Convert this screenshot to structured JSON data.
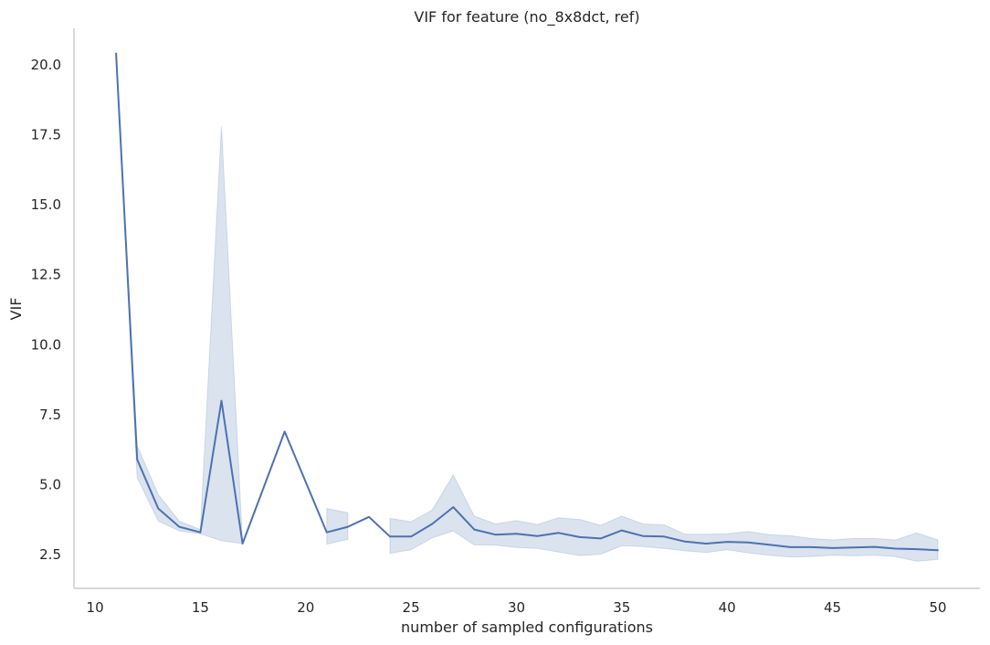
{
  "chart_data": {
    "type": "line",
    "title": "VIF for feature (no_8x8dct, ref)",
    "xlabel": "number of sampled configurations",
    "ylabel": "VIF",
    "xlim": [
      9,
      52
    ],
    "ylim": [
      1.3,
      21.3
    ],
    "xticks": [
      10,
      15,
      20,
      25,
      30,
      35,
      40,
      45,
      50
    ],
    "yticks": [
      2.5,
      5.0,
      7.5,
      10.0,
      12.5,
      15.0,
      17.5,
      20.0
    ],
    "xtick_labels": [
      "10",
      "15",
      "20",
      "25",
      "30",
      "35",
      "40",
      "45",
      "50"
    ],
    "ytick_labels": [
      "2.5",
      "5.0",
      "7.5",
      "10.0",
      "12.5",
      "15.0",
      "17.5",
      "20.0"
    ],
    "grid": false,
    "colors": {
      "line": "#4c72b0",
      "band": "#4c72b0"
    },
    "series": [
      {
        "x": [
          11,
          12,
          13,
          14,
          15,
          16,
          17,
          19,
          21,
          22,
          23,
          24,
          25,
          26,
          27,
          28,
          29,
          30,
          31,
          32,
          33,
          34,
          35,
          36,
          37,
          38,
          39,
          40,
          41,
          42,
          43,
          44,
          45,
          46,
          47,
          48,
          49,
          50
        ],
        "y": [
          20.4,
          5.9,
          4.15,
          3.5,
          3.3,
          8.0,
          2.9,
          6.9,
          3.3,
          3.5,
          3.85,
          3.15,
          3.15,
          3.6,
          4.2,
          3.4,
          3.22,
          3.25,
          3.17,
          3.28,
          3.13,
          3.08,
          3.37,
          3.17,
          3.15,
          2.97,
          2.9,
          2.96,
          2.94,
          2.86,
          2.77,
          2.77,
          2.74,
          2.76,
          2.78,
          2.72,
          2.7,
          2.66
        ]
      }
    ],
    "confidence_band": [
      {
        "x": [
          11,
          12,
          13,
          14,
          15,
          16,
          17
        ],
        "lower": [
          20.4,
          5.25,
          3.7,
          3.35,
          3.25,
          3.0,
          2.9
        ],
        "upper": [
          20.4,
          6.4,
          4.65,
          3.7,
          3.4,
          17.8,
          2.9
        ]
      },
      {
        "x": [
          21,
          22
        ],
        "lower": [
          2.88,
          3.05
        ],
        "upper": [
          4.15,
          4.0
        ]
      },
      {
        "x": [
          24,
          25,
          26,
          27,
          28,
          29,
          30,
          31,
          32,
          33,
          34,
          35,
          36,
          37,
          38,
          39,
          40,
          41,
          42,
          43,
          44,
          45,
          46,
          47,
          48,
          49,
          50
        ],
        "lower": [
          2.55,
          2.68,
          3.1,
          3.35,
          2.85,
          2.84,
          2.76,
          2.73,
          2.6,
          2.47,
          2.52,
          2.82,
          2.79,
          2.73,
          2.64,
          2.58,
          2.68,
          2.57,
          2.48,
          2.42,
          2.44,
          2.48,
          2.46,
          2.48,
          2.43,
          2.27,
          2.33
        ],
        "upper": [
          3.8,
          3.68,
          4.1,
          5.35,
          3.88,
          3.6,
          3.72,
          3.58,
          3.82,
          3.76,
          3.55,
          3.88,
          3.6,
          3.57,
          3.23,
          3.23,
          3.25,
          3.33,
          3.22,
          3.18,
          3.08,
          3.03,
          3.08,
          3.08,
          3.03,
          3.28,
          3.03
        ]
      }
    ]
  }
}
